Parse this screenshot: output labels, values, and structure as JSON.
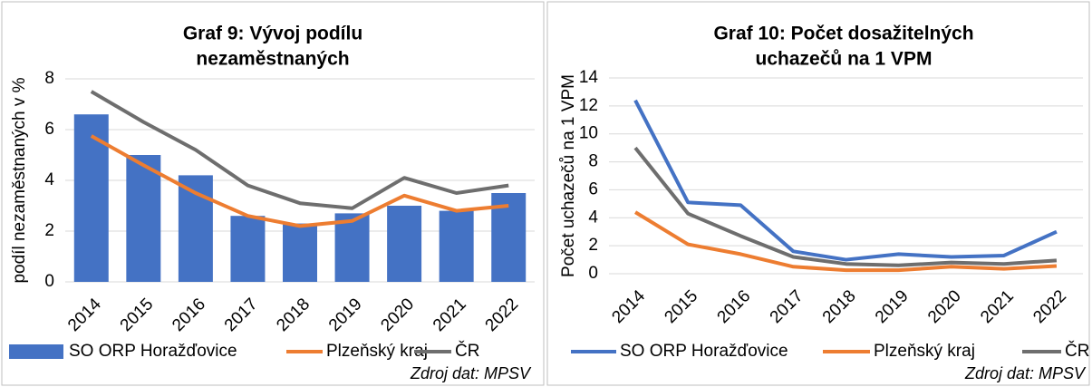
{
  "chart_data": [
    {
      "type": "combo",
      "title": [
        "Graf 9: Vývoj podílu",
        "nezaměstnaných"
      ],
      "y_label": "podíl nezaměstnaných v %",
      "source": "Zdroj dat: MPSV",
      "categories": [
        "2014",
        "2015",
        "2016",
        "2017",
        "2018",
        "2019",
        "2020",
        "2021",
        "2022"
      ],
      "ylim": [
        0,
        8
      ],
      "yticks": [
        0,
        2,
        4,
        6,
        8
      ],
      "series": [
        {
          "name": "SO ORP Horažďovice",
          "type": "bar",
          "color": "#4472c4",
          "values": [
            6.6,
            5.0,
            4.2,
            2.6,
            2.3,
            2.7,
            3.0,
            2.8,
            3.5
          ]
        },
        {
          "name": "Plzeňský kraj",
          "type": "line",
          "color": "#ed7d31",
          "values": [
            5.75,
            4.6,
            3.5,
            2.6,
            2.2,
            2.4,
            3.4,
            2.8,
            3.0
          ]
        },
        {
          "name": "ČR",
          "type": "line",
          "color": "#6e6e6e",
          "values": [
            7.5,
            6.3,
            5.2,
            3.8,
            3.1,
            2.9,
            4.1,
            3.5,
            3.8
          ]
        }
      ]
    },
    {
      "type": "line",
      "title": [
        "Graf 10: Počet dosažitelných",
        "uchazečů na 1 VPM"
      ],
      "y_label": "Počet uchazečů na 1 VPM",
      "source": "Zdroj dat: MPSV",
      "categories": [
        "2014",
        "2015",
        "2016",
        "2017",
        "2018",
        "2019",
        "2020",
        "2021",
        "2022"
      ],
      "ylim": [
        0,
        14
      ],
      "yticks": [
        0,
        2,
        4,
        6,
        8,
        10,
        12,
        14
      ],
      "series": [
        {
          "name": "SO ORP Horažďovice",
          "type": "line",
          "color": "#4472c4",
          "values": [
            12.4,
            5.1,
            4.9,
            1.6,
            1.0,
            1.4,
            1.2,
            1.3,
            3.0
          ]
        },
        {
          "name": "Plzeňský kraj",
          "type": "line",
          "color": "#ed7d31",
          "values": [
            4.4,
            2.1,
            1.4,
            0.5,
            0.25,
            0.25,
            0.5,
            0.35,
            0.55
          ]
        },
        {
          "name": "ČR",
          "type": "line",
          "color": "#6e6e6e",
          "values": [
            9.0,
            4.3,
            2.7,
            1.2,
            0.7,
            0.6,
            0.8,
            0.7,
            0.95
          ]
        }
      ]
    }
  ]
}
